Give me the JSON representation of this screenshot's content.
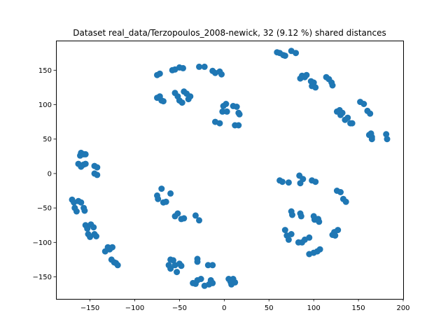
{
  "chart_data": {
    "type": "scatter",
    "title": "Dataset real_data/Terzopoulos_2008-newick, 32 (9.12 %) shared distances",
    "xlabel": "",
    "ylabel": "",
    "xlim": [
      -188,
      200
    ],
    "ylim": [
      -182,
      193
    ],
    "xticks": [
      -150,
      -100,
      -50,
      0,
      50,
      100,
      150,
      200
    ],
    "yticks": [
      -150,
      -100,
      -50,
      0,
      50,
      100,
      150
    ],
    "xtick_labels": [
      "−150",
      "−100",
      "−50",
      "0",
      "50",
      "100",
      "150",
      "200"
    ],
    "ytick_labels": [
      "−150",
      "−100",
      "−50",
      "0",
      "50",
      "100",
      "150"
    ],
    "grid": false,
    "legend": "none",
    "point_color": "#1f77b4",
    "series": [
      {
        "points": [
          [
            -75,
            143
          ],
          [
            -72,
            145
          ],
          [
            -58,
            150
          ],
          [
            -55,
            151
          ],
          [
            -50,
            154
          ],
          [
            -46,
            153
          ],
          [
            -28,
            155
          ],
          [
            -22,
            155
          ],
          [
            -13,
            149
          ],
          [
            -10,
            146
          ],
          [
            -5,
            148
          ],
          [
            -3,
            144
          ],
          [
            -75,
            110
          ],
          [
            -72,
            112
          ],
          [
            -70,
            106
          ],
          [
            -68,
            105
          ],
          [
            -55,
            117
          ],
          [
            -52,
            112
          ],
          [
            -50,
            106
          ],
          [
            -47,
            103
          ],
          [
            -45,
            119
          ],
          [
            -42,
            116
          ],
          [
            -40,
            108
          ],
          [
            -38,
            112
          ],
          [
            -1,
            98
          ],
          [
            2,
            101
          ],
          [
            -2,
            90
          ],
          [
            3,
            90
          ],
          [
            10,
            98
          ],
          [
            14,
            97
          ],
          [
            16,
            88
          ],
          [
            17,
            86
          ],
          [
            -10,
            75
          ],
          [
            -5,
            73
          ],
          [
            12,
            70
          ],
          [
            16,
            70
          ],
          [
            59,
            176
          ],
          [
            62,
            175
          ],
          [
            66,
            172
          ],
          [
            68,
            171
          ],
          [
            75,
            178
          ],
          [
            80,
            175
          ],
          [
            85,
            138
          ],
          [
            87,
            142
          ],
          [
            90,
            140
          ],
          [
            92,
            143
          ],
          [
            97,
            134
          ],
          [
            100,
            132
          ],
          [
            98,
            127
          ],
          [
            102,
            125
          ],
          [
            114,
            140
          ],
          [
            117,
            137
          ],
          [
            120,
            132
          ],
          [
            121,
            128
          ],
          [
            126,
            90
          ],
          [
            129,
            92
          ],
          [
            130,
            85
          ],
          [
            132,
            88
          ],
          [
            135,
            78
          ],
          [
            138,
            81
          ],
          [
            141,
            73
          ],
          [
            143,
            73
          ],
          [
            152,
            104
          ],
          [
            156,
            101
          ],
          [
            160,
            91
          ],
          [
            163,
            87
          ],
          [
            165,
            50
          ],
          [
            162,
            56
          ],
          [
            164,
            58
          ],
          [
            165,
            53
          ],
          [
            181,
            57
          ],
          [
            182,
            50
          ],
          [
            -161,
            26
          ],
          [
            -160,
            30
          ],
          [
            -157,
            28
          ],
          [
            -155,
            28
          ],
          [
            -163,
            14
          ],
          [
            -160,
            10
          ],
          [
            -157,
            13
          ],
          [
            -155,
            14
          ],
          [
            -145,
            11
          ],
          [
            -142,
            9
          ],
          [
            -145,
            0
          ],
          [
            -142,
            -2
          ],
          [
            -170,
            -38
          ],
          [
            -168,
            -42
          ],
          [
            -167,
            -50
          ],
          [
            -165,
            -55
          ],
          [
            -163,
            -40
          ],
          [
            -160,
            -42
          ],
          [
            -157,
            -50
          ],
          [
            -156,
            -54
          ],
          [
            -155,
            -75
          ],
          [
            -153,
            -80
          ],
          [
            -152,
            -88
          ],
          [
            -150,
            -92
          ],
          [
            -149,
            -74
          ],
          [
            -146,
            -78
          ],
          [
            -145,
            -88
          ],
          [
            -143,
            -91
          ],
          [
            -133,
            -113
          ],
          [
            -130,
            -107
          ],
          [
            -128,
            -110
          ],
          [
            -125,
            -107
          ],
          [
            -126,
            -125
          ],
          [
            -123,
            -129
          ],
          [
            -121,
            -130
          ],
          [
            -119,
            -133
          ],
          [
            -70,
            -22
          ],
          [
            -75,
            -32
          ],
          [
            -74,
            -37
          ],
          [
            -68,
            -42
          ],
          [
            -65,
            -41
          ],
          [
            -60,
            -29
          ],
          [
            -55,
            -62
          ],
          [
            -52,
            -58
          ],
          [
            -48,
            -66
          ],
          [
            -45,
            -65
          ],
          [
            -32,
            -61
          ],
          [
            -28,
            -68
          ],
          [
            -60,
            -125
          ],
          [
            -57,
            -126
          ],
          [
            -55,
            -133
          ],
          [
            -50,
            -131
          ],
          [
            -48,
            -134
          ],
          [
            -62,
            -133
          ],
          [
            -60,
            -138
          ],
          [
            -53,
            -143
          ],
          [
            -30,
            -124
          ],
          [
            -30,
            -128
          ],
          [
            -18,
            -133
          ],
          [
            -13,
            -133
          ],
          [
            -30,
            -155
          ],
          [
            -26,
            -153
          ],
          [
            -35,
            -159
          ],
          [
            -32,
            -160
          ],
          [
            -22,
            -163
          ],
          [
            -17,
            -161
          ],
          [
            -15,
            -155
          ],
          [
            -13,
            -159
          ],
          [
            5,
            -153
          ],
          [
            7,
            -157
          ],
          [
            8,
            -161
          ],
          [
            12,
            -158
          ],
          [
            10,
            -153
          ],
          [
            62,
            -10
          ],
          [
            65,
            -12
          ],
          [
            72,
            -13
          ],
          [
            84,
            -3
          ],
          [
            88,
            -8
          ],
          [
            85,
            -14
          ],
          [
            98,
            -10
          ],
          [
            102,
            -12
          ],
          [
            126,
            -25
          ],
          [
            130,
            -27
          ],
          [
            133,
            -37
          ],
          [
            136,
            -41
          ],
          [
            75,
            -55
          ],
          [
            76,
            -60
          ],
          [
            85,
            -58
          ],
          [
            86,
            -62
          ],
          [
            100,
            -62
          ],
          [
            101,
            -67
          ],
          [
            105,
            -66
          ],
          [
            106,
            -70
          ],
          [
            68,
            -82
          ],
          [
            70,
            -90
          ],
          [
            72,
            -96
          ],
          [
            75,
            -88
          ],
          [
            83,
            -100
          ],
          [
            87,
            -100
          ],
          [
            90,
            -96
          ],
          [
            95,
            -93
          ],
          [
            95,
            -117
          ],
          [
            100,
            -115
          ],
          [
            104,
            -113
          ],
          [
            107,
            -110
          ],
          [
            123,
            -85
          ],
          [
            127,
            -82
          ],
          [
            121,
            -89
          ],
          [
            124,
            -90
          ]
        ]
      }
    ]
  }
}
